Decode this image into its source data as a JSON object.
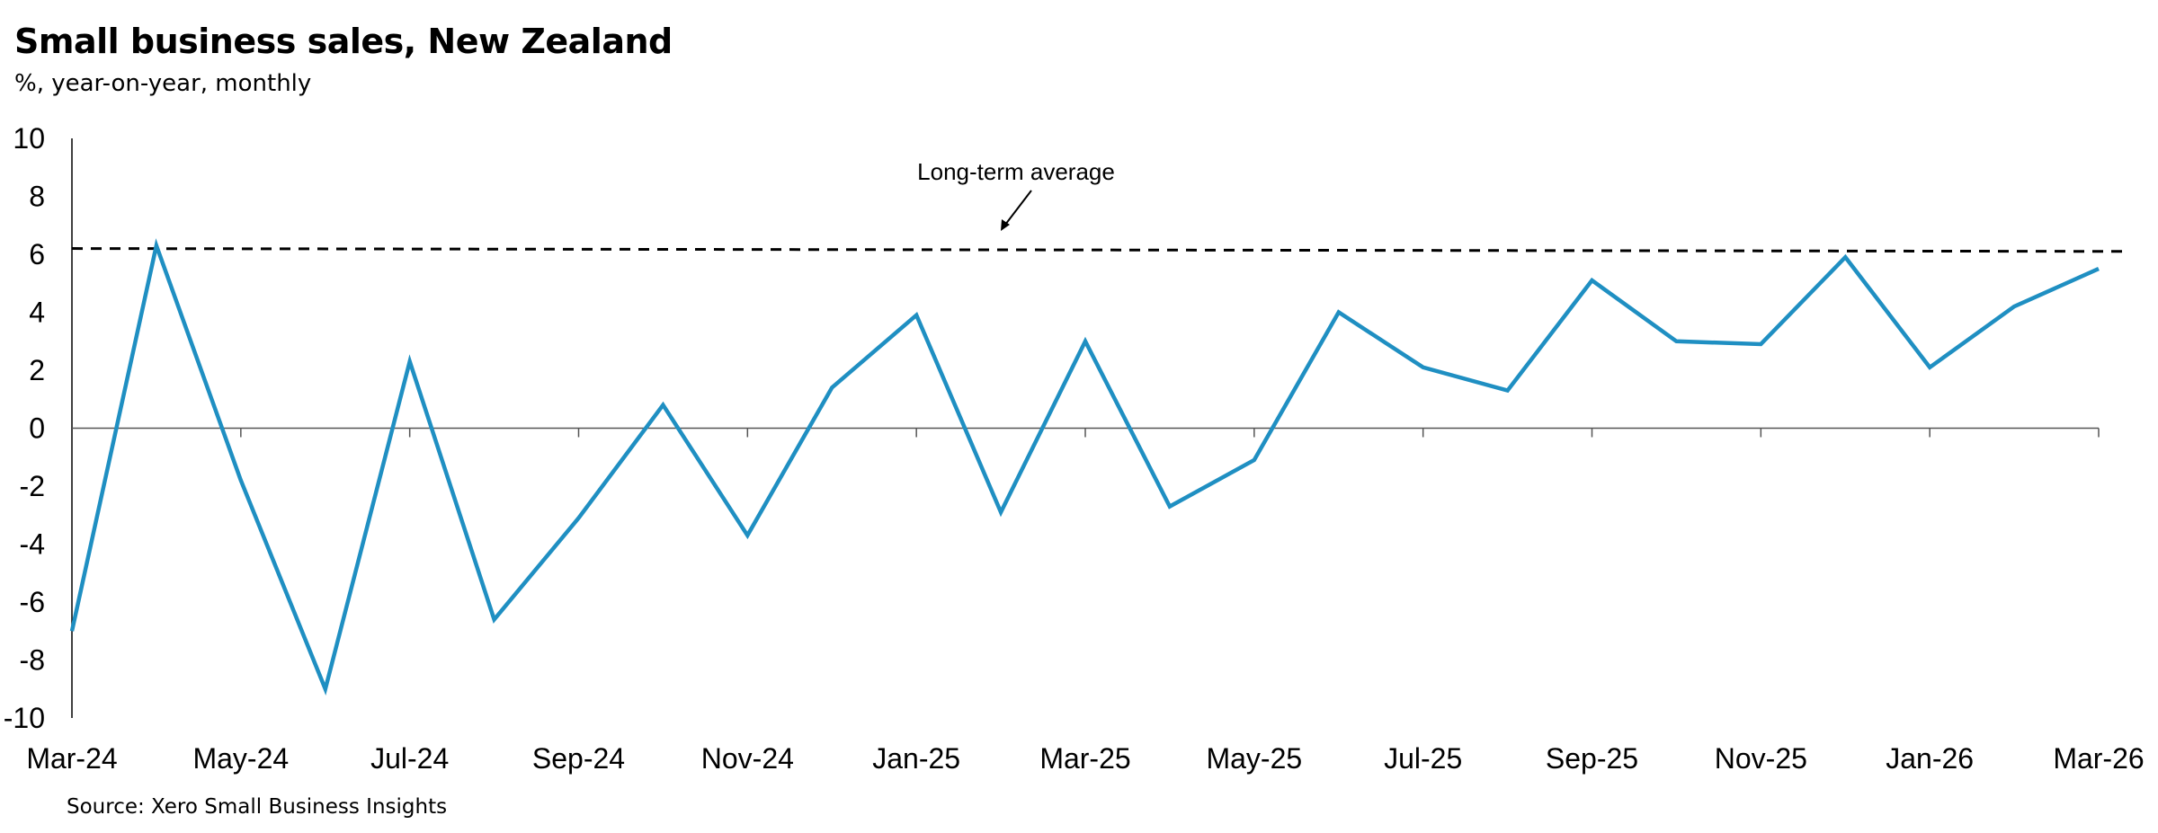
{
  "chart_data": {
    "type": "line",
    "title": "Small business sales, New Zealand",
    "subtitle": "%, year-on-year, monthly",
    "source": "Source: Xero Small Business Insights",
    "ylim": [
      -10,
      10
    ],
    "yticks": [
      10,
      8,
      6,
      4,
      2,
      0,
      -2,
      -4,
      -6,
      -8,
      -10
    ],
    "xtick_labels": [
      "Mar-24",
      "May-24",
      "Jul-24",
      "Sep-24",
      "Nov-24",
      "Jan-25",
      "Mar-25",
      "May-25",
      "Jul-25",
      "Sep-25",
      "Nov-25",
      "Jan-26",
      "Mar-26"
    ],
    "x": [
      "Mar-24",
      "Apr-24",
      "May-24",
      "Jun-24",
      "Jul-24",
      "Aug-24",
      "Sep-24",
      "Oct-24",
      "Nov-24",
      "Dec-24",
      "Jan-25",
      "Feb-25",
      "Mar-25",
      "Apr-25",
      "May-25",
      "Jun-25",
      "Jul-25",
      "Aug-25",
      "Sep-25",
      "Oct-25",
      "Nov-25",
      "Dec-25",
      "Jan-26",
      "Feb-26",
      "Mar-26"
    ],
    "series": [
      {
        "color": "#1f8fc2",
        "values": [
          -7.0,
          6.3,
          -1.8,
          -9.0,
          2.3,
          -6.6,
          -3.1,
          0.8,
          -3.7,
          1.4,
          3.9,
          -2.9,
          3.0,
          -2.7,
          -1.1,
          4.0,
          2.1,
          1.3,
          5.1,
          3.0,
          2.9,
          5.9,
          2.1,
          4.2,
          5.5
        ]
      }
    ],
    "reference_line": {
      "value": 6.15,
      "style": "dashed",
      "color": "#000000"
    },
    "annotation": {
      "text": "Long-term average"
    },
    "grid": false,
    "legend": "none"
  }
}
